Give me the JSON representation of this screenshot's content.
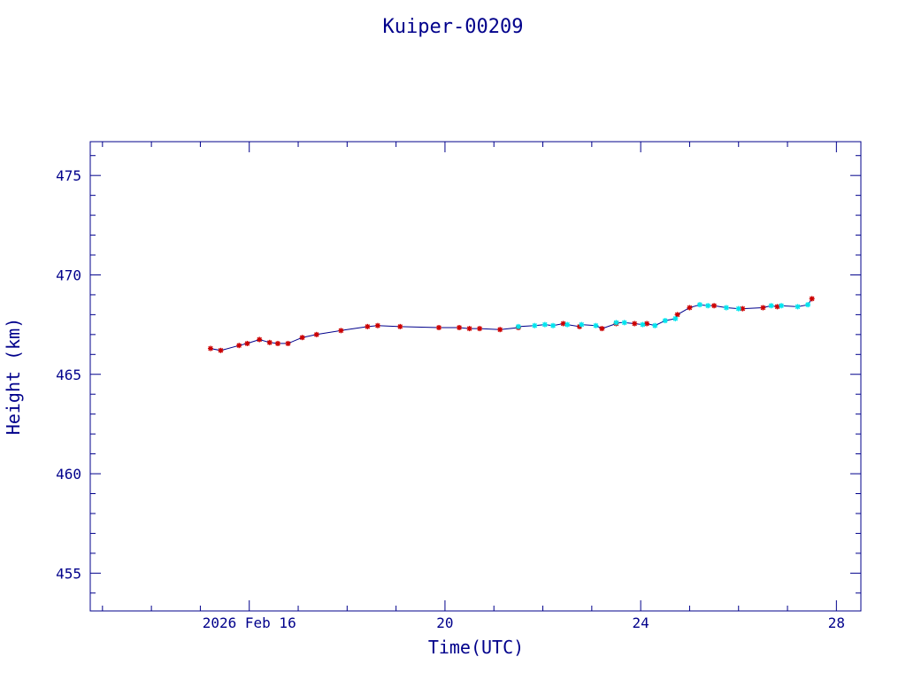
{
  "chart_data": {
    "type": "line",
    "title": "Kuiper-00209",
    "xlabel": "Time(UTC)",
    "ylabel": "Height (km)",
    "xlim": [
      "2026-02-12T18:00",
      "2026-02-28T12:00"
    ],
    "ylim": [
      453.1,
      476.7
    ],
    "x_ticks": [
      {
        "label": "2026 Feb 16",
        "x": "2026-02-16"
      },
      {
        "label": "20",
        "x": "2026-02-20"
      },
      {
        "label": "24",
        "x": "2026-02-24"
      },
      {
        "label": "28",
        "x": "2026-02-28"
      }
    ],
    "y_ticks": [
      455,
      460,
      465,
      470,
      475
    ],
    "grid": false,
    "line_color": "#00008b",
    "axis_color": "#00008b",
    "series": [
      {
        "marker": "star",
        "color": "#cc0000",
        "points": [
          {
            "x": "2026-02-15T05:00",
            "y": 466.3
          },
          {
            "x": "2026-02-15T10:00",
            "y": 466.2
          },
          {
            "x": "2026-02-15T19:00",
            "y": 466.45
          },
          {
            "x": "2026-02-15T23:00",
            "y": 466.55
          },
          {
            "x": "2026-02-16T05:00",
            "y": 466.75
          },
          {
            "x": "2026-02-16T10:00",
            "y": 466.6
          },
          {
            "x": "2026-02-16T14:00",
            "y": 466.55
          },
          {
            "x": "2026-02-16T19:00",
            "y": 466.55
          },
          {
            "x": "2026-02-17T02:00",
            "y": 466.85
          },
          {
            "x": "2026-02-17T09:00",
            "y": 467.0
          },
          {
            "x": "2026-02-17T21:00",
            "y": 467.2
          },
          {
            "x": "2026-02-18T10:00",
            "y": 467.4
          },
          {
            "x": "2026-02-18T15:00",
            "y": 467.45
          },
          {
            "x": "2026-02-19T02:00",
            "y": 467.4
          },
          {
            "x": "2026-02-19T21:00",
            "y": 467.35
          },
          {
            "x": "2026-02-20T07:00",
            "y": 467.35
          },
          {
            "x": "2026-02-20T12:00",
            "y": 467.3
          },
          {
            "x": "2026-02-20T17:00",
            "y": 467.3
          },
          {
            "x": "2026-02-21T03:00",
            "y": 467.25
          },
          {
            "x": "2026-02-21T12:00",
            "y": 467.35
          },
          {
            "x": "2026-02-22T10:00",
            "y": 467.55
          },
          {
            "x": "2026-02-22T18:00",
            "y": 467.4
          },
          {
            "x": "2026-02-23T05:00",
            "y": 467.3
          },
          {
            "x": "2026-02-23T12:00",
            "y": 467.55
          },
          {
            "x": "2026-02-23T21:00",
            "y": 467.55
          },
          {
            "x": "2026-02-24T03:00",
            "y": 467.55
          },
          {
            "x": "2026-02-24T18:00",
            "y": 468.0
          },
          {
            "x": "2026-02-25T00:00",
            "y": 468.35
          },
          {
            "x": "2026-02-25T12:00",
            "y": 468.45
          },
          {
            "x": "2026-02-26T02:00",
            "y": 468.3
          },
          {
            "x": "2026-02-26T12:00",
            "y": 468.35
          },
          {
            "x": "2026-02-26T19:00",
            "y": 468.4
          },
          {
            "x": "2026-02-27T12:00",
            "y": 468.8
          }
        ]
      },
      {
        "marker": "star",
        "color": "#00e5ee",
        "points": [
          {
            "x": "2026-02-21T12:00",
            "y": 467.4
          },
          {
            "x": "2026-02-21T20:00",
            "y": 467.45
          },
          {
            "x": "2026-02-22T01:00",
            "y": 467.5
          },
          {
            "x": "2026-02-22T05:00",
            "y": 467.45
          },
          {
            "x": "2026-02-22T12:00",
            "y": 467.5
          },
          {
            "x": "2026-02-22T19:00",
            "y": 467.5
          },
          {
            "x": "2026-02-23T02:00",
            "y": 467.45
          },
          {
            "x": "2026-02-23T12:00",
            "y": 467.6
          },
          {
            "x": "2026-02-23T16:00",
            "y": 467.6
          },
          {
            "x": "2026-02-24T01:00",
            "y": 467.5
          },
          {
            "x": "2026-02-24T07:00",
            "y": 467.45
          },
          {
            "x": "2026-02-24T12:00",
            "y": 467.7
          },
          {
            "x": "2026-02-24T17:00",
            "y": 467.8
          },
          {
            "x": "2026-02-25T05:00",
            "y": 468.5
          },
          {
            "x": "2026-02-25T09:00",
            "y": 468.45
          },
          {
            "x": "2026-02-25T18:00",
            "y": 468.35
          },
          {
            "x": "2026-02-26T00:00",
            "y": 468.3
          },
          {
            "x": "2026-02-26T16:00",
            "y": 468.45
          },
          {
            "x": "2026-02-26T21:00",
            "y": 468.45
          },
          {
            "x": "2026-02-27T05:00",
            "y": 468.4
          },
          {
            "x": "2026-02-27T10:00",
            "y": 468.5
          }
        ]
      }
    ]
  }
}
